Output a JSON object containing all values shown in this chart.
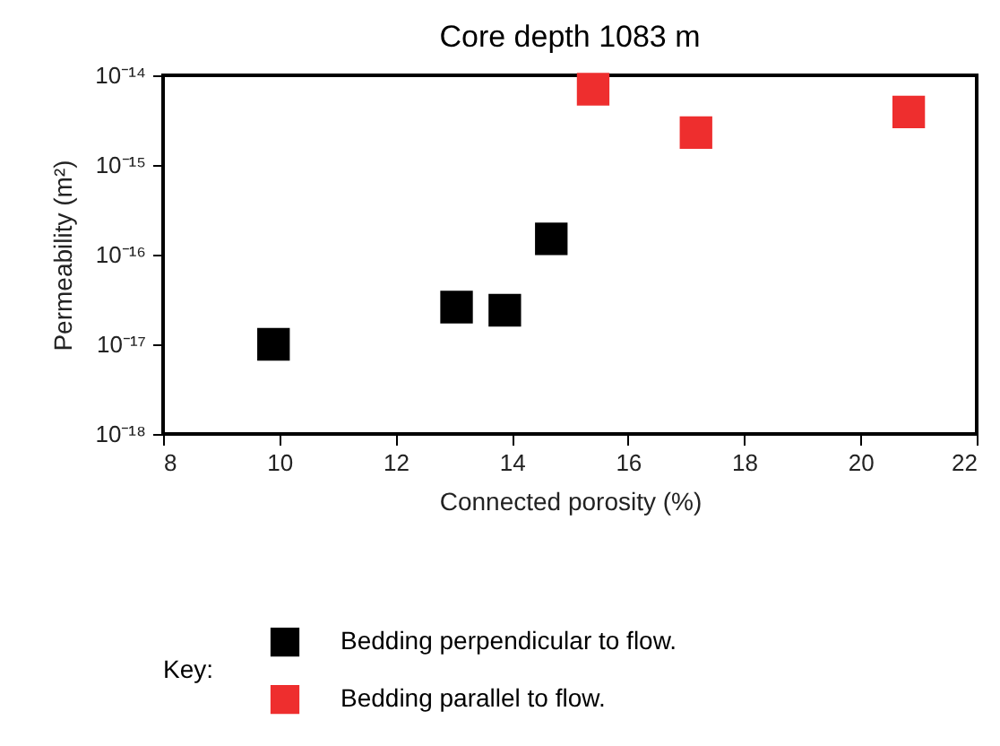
{
  "chart_data": {
    "type": "scatter",
    "title": "Core depth 1083 m",
    "xlabel": "Connected porosity (%)",
    "ylabel": "Permeability (m²)",
    "legend_title": "Key:",
    "series": [
      {
        "name": "Bedding perpendicular to flow.",
        "color": "#000000",
        "x": [
          9.9,
          13.05,
          13.88,
          14.68
        ],
        "values": [
          1e-17,
          2.6e-17,
          2.4e-17,
          1.5e-16
        ]
      },
      {
        "name": "Bedding parallel to flow.",
        "color": "#ee2e2e",
        "x": [
          15.4,
          17.17,
          20.83
        ],
        "values": [
          7e-15,
          2.3e-15,
          3.9e-15
        ]
      }
    ],
    "xlim": [
      8,
      22
    ],
    "xticks": [
      8,
      10,
      12,
      14,
      16,
      18,
      20,
      22
    ],
    "ylim": [
      1e-18,
      1e-14
    ],
    "yticks": [
      {
        "value": 1e-18,
        "label": "10⁻¹⁸"
      },
      {
        "value": 1e-17,
        "label": "10⁻¹⁷"
      },
      {
        "value": 1e-16,
        "label": "10⁻¹⁶"
      },
      {
        "value": 1e-15,
        "label": "10⁻¹⁵"
      },
      {
        "value": 1e-14,
        "label": "10⁻¹⁴"
      }
    ],
    "log": true,
    "grid": false,
    "legend": "bottom",
    "marker": "square"
  }
}
